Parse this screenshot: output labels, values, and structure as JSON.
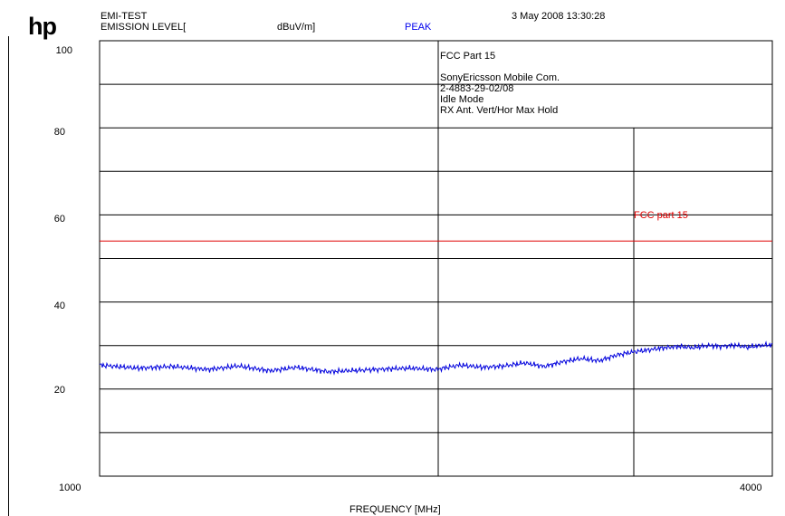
{
  "header": {
    "logo": "hp",
    "test_name": "EMI-TEST",
    "level_label": "EMISSION LEVEL[",
    "unit_label": "dBuV/m]",
    "detector": "PEAK",
    "timestamp": "3 May 2008  13:30:28"
  },
  "info_box": {
    "standard": "FCC Part 15",
    "lines": [
      "SonyEricsson Mobile Com.",
      "2-4883-29-02/08",
      "Idle Mode",
      "RX Ant. Vert/Hor Max Hold"
    ]
  },
  "colors": {
    "trace": "#0000dd",
    "limit": "#e00000",
    "detector": "#0000ee",
    "grid": "#000000"
  },
  "chart_data": {
    "type": "line",
    "title": "",
    "xlabel": "FREQUENCY [MHz]",
    "ylabel": "EMISSION LEVEL[ dBuV/m]",
    "xlim": [
      1000,
      4000
    ],
    "ylim": [
      0,
      100
    ],
    "x_scale": "log",
    "x_tick_labels": [
      "1000",
      "4000"
    ],
    "y_tick_labels": [
      "100",
      "80",
      "60",
      "40",
      "20"
    ],
    "y_ticks": [
      100,
      80,
      60,
      40,
      20
    ],
    "grid": true,
    "limit_line": {
      "name": "FCC part 15",
      "value": 54
    },
    "series": [
      {
        "x": [
          1000,
          1080,
          1160,
          1250,
          1330,
          1420,
          1500,
          1600,
          1700,
          1800,
          1900,
          2000,
          2100,
          2200,
          2300,
          2400,
          2500,
          2600,
          2700,
          2800,
          2900,
          3000,
          3100,
          3200,
          3300,
          3400,
          3500,
          3600,
          3700,
          3800,
          3900,
          4000
        ],
        "y": [
          25.5,
          24.8,
          25.2,
          24.5,
          25.3,
          24.2,
          25.0,
          24.0,
          24.3,
          24.6,
          24.8,
          24.5,
          25.5,
          25.0,
          25.3,
          26.0,
          25.2,
          26.3,
          27.0,
          26.5,
          27.8,
          28.5,
          29.0,
          29.5,
          29.8,
          29.5,
          30.0,
          29.8,
          30.1,
          29.6,
          30.0,
          30.2
        ]
      }
    ]
  }
}
